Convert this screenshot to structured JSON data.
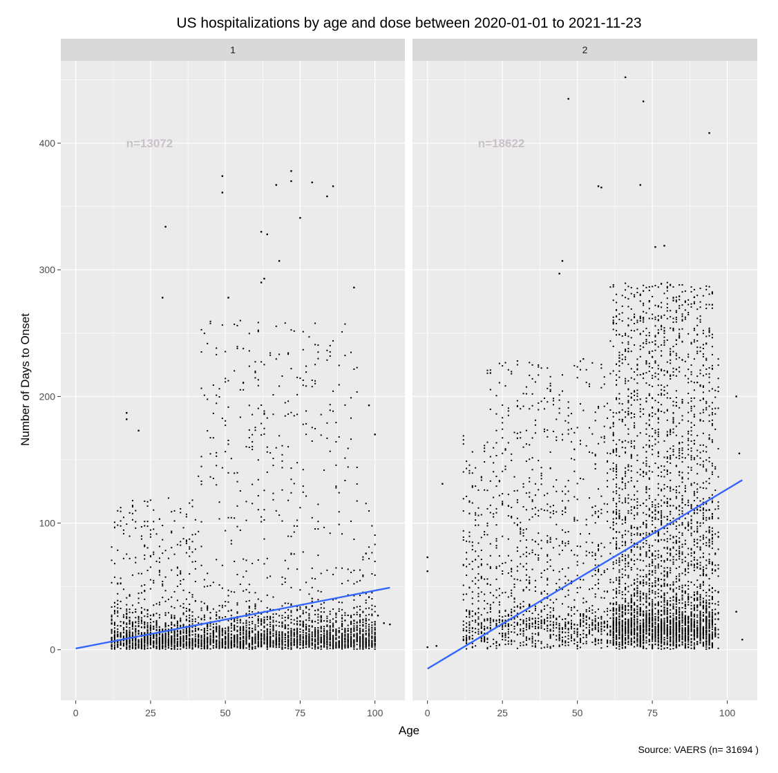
{
  "chart_data": {
    "type": "scatter",
    "title": "US hospitalizations by age and dose between 2020-01-01 to 2021-11-23",
    "xlabel": "Age",
    "ylabel": "Number of Days to Onset",
    "caption": "Source: VAERS (n= 31694 )",
    "xlim": [
      -5,
      110
    ],
    "ylim": [
      -40,
      465
    ],
    "xticks": [
      0,
      25,
      50,
      75,
      100
    ],
    "yticks": [
      0,
      100,
      200,
      300,
      400
    ],
    "grid": true,
    "colors": {
      "panel_bg": "#ebebeb",
      "strip_bg": "#d9d9d9",
      "grid": "#ffffff",
      "points": "#000000",
      "trend": "#3366ff",
      "annotation": "#c9c0c9",
      "text": "#000000",
      "tick_text": "#4d4d4d"
    },
    "panels": [
      {
        "strip": "1",
        "annotation": "n=13072",
        "annotation_pos": {
          "x": 15,
          "y": 400
        },
        "n_points": 13072,
        "age_range": [
          0,
          105
        ],
        "trend": {
          "x": [
            0,
            105
          ],
          "y": [
            1,
            49
          ]
        },
        "outliers": [
          {
            "x": 49,
            "y": 374
          },
          {
            "x": 49,
            "y": 361
          },
          {
            "x": 72,
            "y": 378
          },
          {
            "x": 72,
            "y": 370
          },
          {
            "x": 79,
            "y": 369
          },
          {
            "x": 86,
            "y": 366
          },
          {
            "x": 84,
            "y": 358
          },
          {
            "x": 67,
            "y": 367
          },
          {
            "x": 75,
            "y": 341
          },
          {
            "x": 30,
            "y": 334
          },
          {
            "x": 62,
            "y": 330
          },
          {
            "x": 64,
            "y": 328
          },
          {
            "x": 68,
            "y": 307
          },
          {
            "x": 63,
            "y": 293
          },
          {
            "x": 62,
            "y": 290
          },
          {
            "x": 93,
            "y": 286
          },
          {
            "x": 29,
            "y": 278
          },
          {
            "x": 51,
            "y": 278
          },
          {
            "x": 17,
            "y": 187
          },
          {
            "x": 17,
            "y": 182
          },
          {
            "x": 21,
            "y": 173
          },
          {
            "x": 98,
            "y": 193
          },
          {
            "x": 100,
            "y": 170
          },
          {
            "x": 97,
            "y": 76
          },
          {
            "x": 101,
            "y": 27
          },
          {
            "x": 103,
            "y": 21
          },
          {
            "x": 105,
            "y": 20
          }
        ]
      },
      {
        "strip": "2",
        "annotation": "n=18622",
        "annotation_pos": {
          "x": 15,
          "y": 400
        },
        "n_points": 18622,
        "age_range": [
          0,
          105
        ],
        "trend": {
          "x": [
            0,
            105
          ],
          "y": [
            -15,
            134
          ]
        },
        "outliers": [
          {
            "x": 66,
            "y": 452
          },
          {
            "x": 47,
            "y": 435
          },
          {
            "x": 72,
            "y": 433
          },
          {
            "x": 94,
            "y": 408
          },
          {
            "x": 71,
            "y": 367
          },
          {
            "x": 57,
            "y": 366
          },
          {
            "x": 58,
            "y": 365
          },
          {
            "x": 79,
            "y": 319
          },
          {
            "x": 76,
            "y": 318
          },
          {
            "x": 45,
            "y": 307
          },
          {
            "x": 44,
            "y": 297
          },
          {
            "x": 0,
            "y": 73
          },
          {
            "x": 0,
            "y": 62
          },
          {
            "x": 5,
            "y": 131
          },
          {
            "x": 0,
            "y": 2
          },
          {
            "x": 3,
            "y": 3
          },
          {
            "x": 105,
            "y": 8
          },
          {
            "x": 103,
            "y": 200
          },
          {
            "x": 104,
            "y": 155
          },
          {
            "x": 103,
            "y": 30
          }
        ]
      }
    ]
  }
}
